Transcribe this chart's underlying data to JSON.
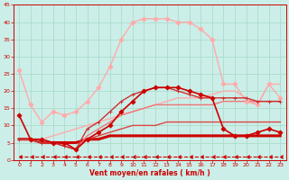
{
  "background_color": "#cceee8",
  "grid_color": "#aaddcc",
  "xlabel": "Vent moyen/en rafales ( km/h )",
  "xlabel_color": "#cc0000",
  "xlim": [
    -0.5,
    23.5
  ],
  "ylim": [
    0,
    45
  ],
  "yticks": [
    0,
    5,
    10,
    15,
    20,
    25,
    30,
    35,
    40,
    45
  ],
  "xticks": [
    0,
    1,
    2,
    3,
    4,
    5,
    6,
    7,
    8,
    9,
    10,
    11,
    12,
    13,
    14,
    15,
    16,
    17,
    18,
    19,
    20,
    21,
    22,
    23
  ],
  "lines": [
    {
      "x": [
        0,
        1,
        2,
        3,
        4,
        5,
        6,
        7,
        8,
        9,
        10,
        11,
        12,
        13,
        14,
        15,
        16,
        17,
        18,
        19,
        20,
        21,
        22,
        23
      ],
      "y": [
        1,
        1,
        1,
        1,
        1,
        1,
        1,
        1,
        1,
        1,
        1,
        1,
        1,
        1,
        1,
        1,
        1,
        1,
        1,
        1,
        1,
        1,
        1,
        1
      ],
      "color": "#cc0000",
      "lw": 0.8,
      "marker": 4,
      "markersize": 3,
      "linestyle": "--",
      "zorder": 2
    },
    {
      "x": [
        0,
        1,
        2,
        3,
        4,
        5,
        6,
        7,
        8,
        9,
        10,
        11,
        12,
        13,
        14,
        15,
        16,
        17,
        18,
        19,
        20,
        21,
        22,
        23
      ],
      "y": [
        13,
        6,
        6,
        5,
        5,
        3,
        6,
        8,
        10,
        14,
        17,
        20,
        21,
        21,
        21,
        20,
        19,
        18,
        9,
        7,
        7,
        8,
        9,
        8
      ],
      "color": "#cc0000",
      "lw": 1.2,
      "marker": "D",
      "markersize": 2.5,
      "linestyle": "-",
      "zorder": 5
    },
    {
      "x": [
        0,
        1,
        2,
        3,
        4,
        5,
        6,
        7,
        8,
        9,
        10,
        11,
        12,
        13,
        14,
        15,
        16,
        17,
        18,
        19,
        20,
        21,
        22,
        23
      ],
      "y": [
        6,
        6,
        5,
        5,
        5,
        5,
        6,
        6,
        7,
        7,
        7,
        7,
        7,
        7,
        7,
        7,
        7,
        7,
        7,
        7,
        7,
        7,
        7,
        7
      ],
      "color": "#cc0000",
      "lw": 2.2,
      "marker": null,
      "markersize": 0,
      "linestyle": "-",
      "zorder": 3
    },
    {
      "x": [
        0,
        1,
        2,
        3,
        4,
        5,
        6,
        7,
        8,
        9,
        10,
        11,
        12,
        13,
        14,
        15,
        16,
        17,
        18,
        19,
        20,
        21,
        22,
        23
      ],
      "y": [
        6,
        6,
        5,
        5,
        4,
        3,
        6,
        7,
        8,
        9,
        10,
        10,
        10,
        11,
        11,
        11,
        11,
        11,
        11,
        11,
        11,
        11,
        11,
        11
      ],
      "color": "#dd4444",
      "lw": 1.0,
      "marker": null,
      "markersize": 0,
      "linestyle": "-",
      "zorder": 3
    },
    {
      "x": [
        0,
        1,
        2,
        3,
        4,
        5,
        6,
        7,
        8,
        9,
        10,
        11,
        12,
        13,
        14,
        15,
        16,
        17,
        18,
        19,
        20,
        21,
        22,
        23
      ],
      "y": [
        6,
        6,
        5,
        5,
        4,
        3,
        7,
        9,
        11,
        13,
        14,
        15,
        16,
        16,
        16,
        16,
        16,
        16,
        17,
        17,
        17,
        17,
        17,
        17
      ],
      "color": "#ee7777",
      "lw": 1.0,
      "marker": null,
      "markersize": 0,
      "linestyle": "-",
      "zorder": 3
    },
    {
      "x": [
        0,
        1,
        2,
        3,
        4,
        5,
        6,
        7,
        8,
        9,
        10,
        11,
        12,
        13,
        14,
        15,
        16,
        17,
        18,
        19,
        20,
        21,
        22,
        23
      ],
      "y": [
        6,
        6,
        5,
        5,
        4,
        3,
        9,
        11,
        14,
        17,
        19,
        20,
        21,
        21,
        20,
        19,
        18,
        18,
        18,
        18,
        18,
        17,
        17,
        17
      ],
      "color": "#cc3333",
      "lw": 1.0,
      "marker": "+",
      "markersize": 3.5,
      "linestyle": "-",
      "zorder": 4
    },
    {
      "x": [
        0,
        1,
        2,
        3,
        4,
        5,
        6,
        7,
        8,
        9,
        10,
        11,
        12,
        13,
        14,
        15,
        16,
        17,
        18,
        19,
        20,
        21,
        22,
        23
      ],
      "y": [
        26,
        16,
        11,
        14,
        13,
        14,
        17,
        21,
        27,
        35,
        40,
        41,
        41,
        41,
        40,
        40,
        38,
        35,
        22,
        22,
        17,
        16,
        22,
        18
      ],
      "color": "#ffaaaa",
      "lw": 1.0,
      "marker": "D",
      "markersize": 2.5,
      "linestyle": "-",
      "zorder": 3
    },
    {
      "x": [
        0,
        1,
        2,
        3,
        4,
        5,
        6,
        7,
        8,
        9,
        10,
        11,
        12,
        13,
        14,
        15,
        16,
        17,
        18,
        19,
        20,
        21,
        22,
        23
      ],
      "y": [
        6,
        6,
        6,
        7,
        8,
        9,
        10,
        11,
        12,
        13,
        14,
        15,
        16,
        17,
        18,
        18,
        18,
        19,
        20,
        20,
        18,
        16,
        22,
        22
      ],
      "color": "#ffaaaa",
      "lw": 1.0,
      "marker": null,
      "markersize": 0,
      "linestyle": "-",
      "zorder": 2
    }
  ]
}
